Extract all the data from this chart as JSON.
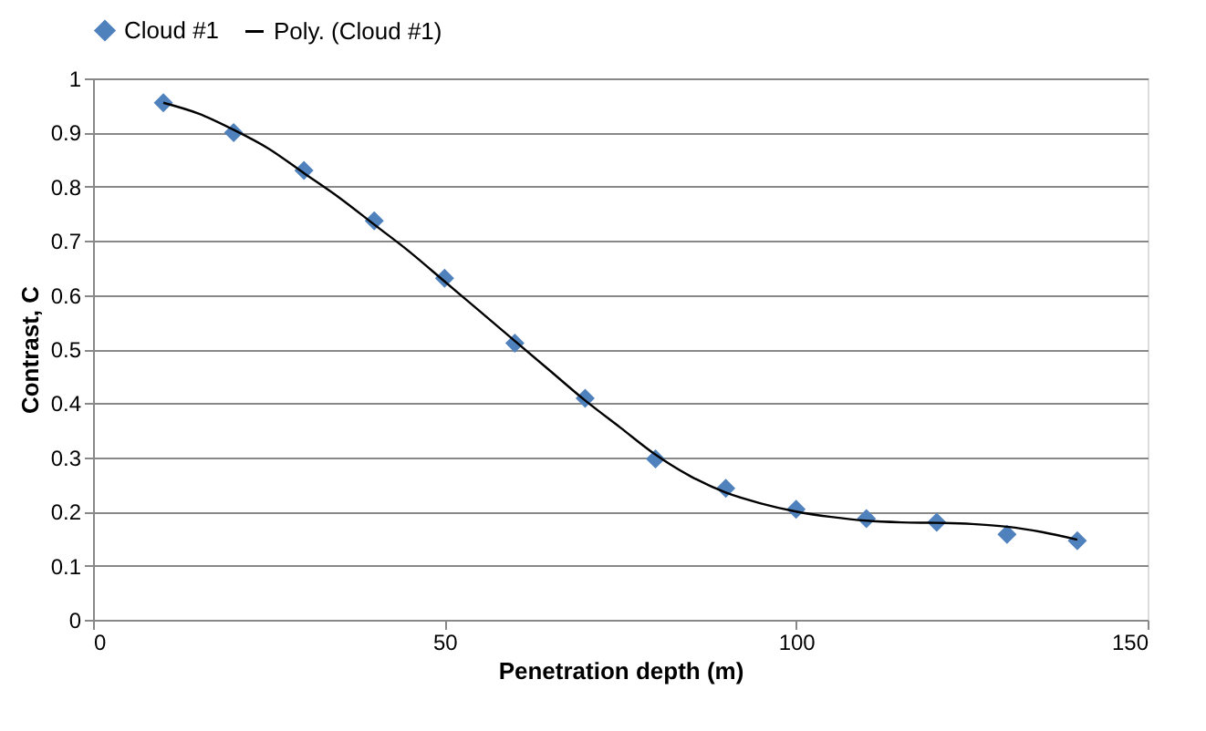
{
  "chart_data": {
    "type": "scatter",
    "xlabel": "Penetration depth (m)",
    "ylabel": "Contrast, C",
    "xlim": [
      0,
      150
    ],
    "xticks": [
      0,
      50,
      100,
      150
    ],
    "ylim": [
      0,
      1
    ],
    "yticks": [
      {
        "value": 0,
        "label": "0"
      },
      0.1,
      0.2,
      0.3,
      0.4,
      0.5,
      0.6,
      0.7,
      0.8,
      0.9,
      {
        "value": 1,
        "label": "1"
      }
    ],
    "grid": "y",
    "legend": "top",
    "series": [
      {
        "name": "Cloud #1",
        "marker": "diamond",
        "color": "#4f81bd",
        "x": [
          10,
          20,
          30,
          40,
          50,
          60,
          70,
          80,
          90,
          100,
          110,
          120,
          130,
          140
        ],
        "values": [
          0.955,
          0.9,
          0.83,
          0.737,
          0.631,
          0.511,
          0.409,
          0.297,
          0.243,
          0.204,
          0.187,
          0.18,
          0.158,
          0.146
        ]
      },
      {
        "name": "Poly. (Cloud #1)",
        "type": "line",
        "marker": "none",
        "color": "#000000",
        "line_style": "solid",
        "x": [
          10,
          15,
          20,
          25,
          30,
          35,
          40,
          45,
          50,
          55,
          60,
          65,
          70,
          75,
          80,
          85,
          90,
          95,
          100,
          105,
          110,
          115,
          120,
          125,
          130,
          135,
          140
        ],
        "values": [
          0.955,
          0.935,
          0.905,
          0.87,
          0.825,
          0.78,
          0.73,
          0.68,
          0.625,
          0.57,
          0.515,
          0.46,
          0.405,
          0.355,
          0.305,
          0.265,
          0.235,
          0.215,
          0.2,
          0.19,
          0.183,
          0.18,
          0.179,
          0.177,
          0.172,
          0.162,
          0.148
        ]
      }
    ]
  }
}
